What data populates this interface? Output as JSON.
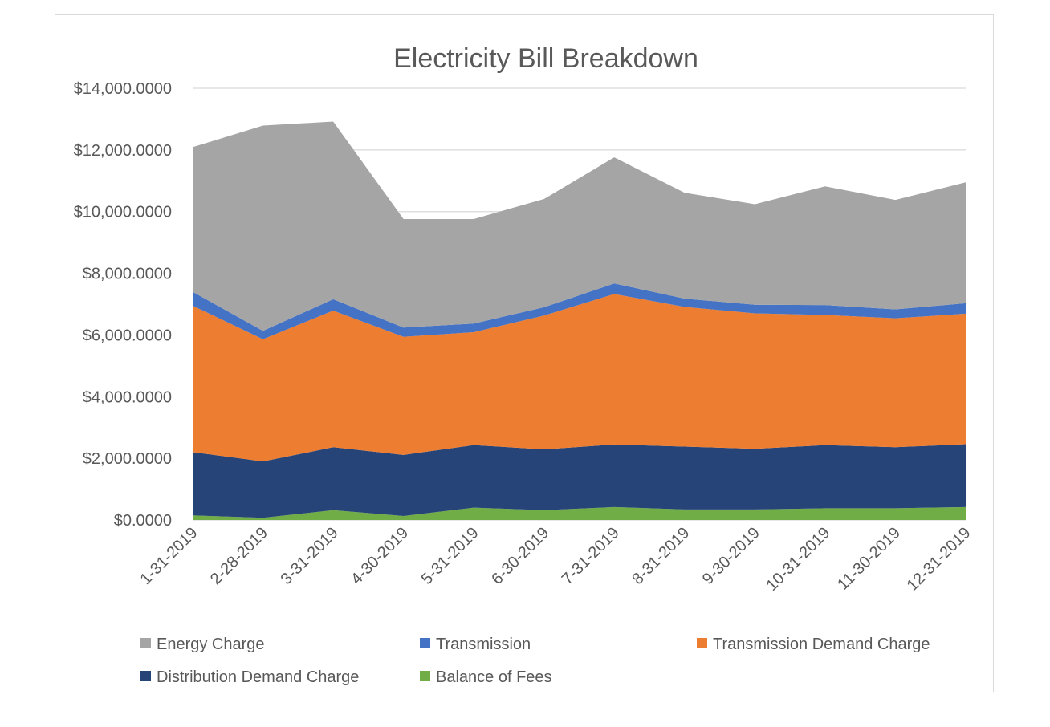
{
  "chart_data": {
    "type": "area",
    "stacked": true,
    "title": "Electricity Bill Breakdown",
    "xlabel": "",
    "ylabel": "",
    "ylim": [
      0,
      14000
    ],
    "yticks": [
      0,
      2000,
      4000,
      6000,
      8000,
      10000,
      12000,
      14000
    ],
    "ytick_labels": [
      "$0.0000",
      "$2,000.0000",
      "$4,000.0000",
      "$6,000.0000",
      "$8,000.0000",
      "$10,000.0000",
      "$12,000.0000",
      "$14,000.0000"
    ],
    "grid": true,
    "legend_position": "bottom",
    "categories": [
      "1-31-2019",
      "2-28-2019",
      "3-31-2019",
      "4-30-2019",
      "5-31-2019",
      "6-30-2019",
      "7-31-2019",
      "8-31-2019",
      "9-30-2019",
      "10-31-2019",
      "11-30-2019",
      "12-31-2019"
    ],
    "series": [
      {
        "name": "Balance of Fees",
        "color": "#70ad47",
        "values": [
          150,
          70,
          320,
          130,
          400,
          320,
          420,
          340,
          340,
          380,
          380,
          420
        ]
      },
      {
        "name": "Distribution Demand Charge",
        "color": "#264478",
        "values": [
          2050,
          1830,
          2040,
          1980,
          2030,
          1970,
          2030,
          2040,
          1970,
          2050,
          1980,
          2040
        ]
      },
      {
        "name": "Transmission Demand Charge",
        "color": "#ed7d31",
        "values": [
          4750,
          3960,
          4430,
          3830,
          3660,
          4340,
          4880,
          4530,
          4390,
          4220,
          4180,
          4230
        ]
      },
      {
        "name": "Transmission",
        "color": "#4472c4",
        "values": [
          450,
          270,
          370,
          300,
          280,
          270,
          340,
          270,
          280,
          320,
          290,
          340
        ]
      },
      {
        "name": "Energy Charge",
        "color": "#a5a5a5",
        "values": [
          4690,
          6660,
          5760,
          3520,
          3390,
          3510,
          4090,
          3430,
          3260,
          3850,
          3550,
          3920
        ]
      }
    ],
    "legend_order": [
      "Energy Charge",
      "Transmission",
      "Transmission Demand Charge",
      "Distribution Demand Charge",
      "Balance of Fees"
    ]
  }
}
